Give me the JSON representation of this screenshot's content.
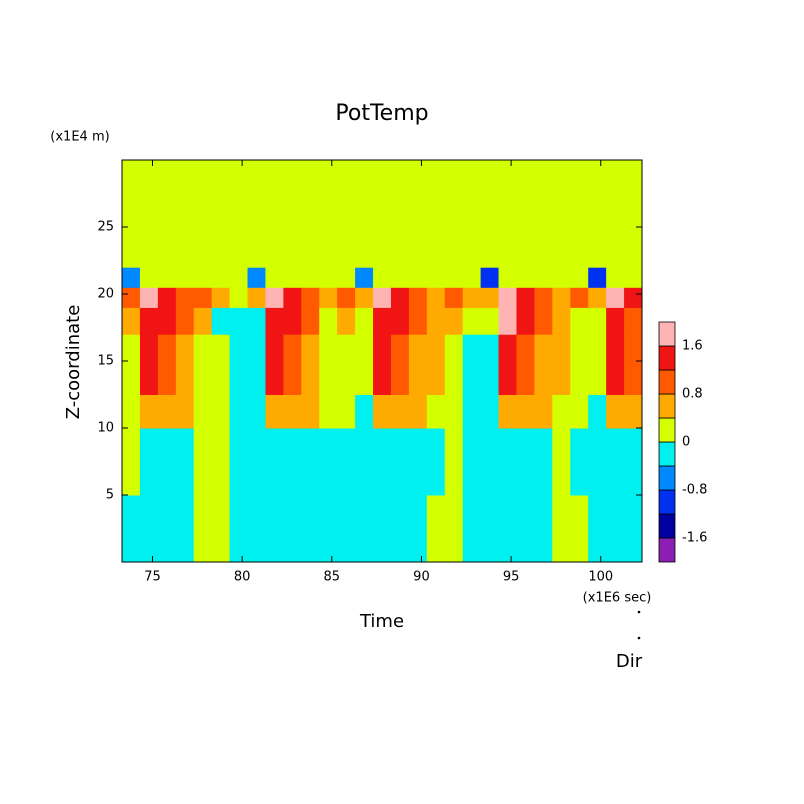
{
  "chart_data": {
    "type": "heatmap",
    "title": "PotTemp",
    "x_label": "Time",
    "x_unit": "(x1E6 sec)",
    "y_label": "Z-coordinate",
    "y_unit": "(x1E4 m)",
    "footer": "Dir",
    "xlim": [
      73.3,
      102.3
    ],
    "ylim": [
      0,
      30
    ],
    "xticks": [
      75,
      80,
      85,
      90,
      95,
      100
    ],
    "yticks": [
      5,
      10,
      15,
      20,
      25
    ],
    "x_edges": [
      73.3,
      74.3,
      75.3,
      76.3,
      77.3,
      78.3,
      79.3,
      80.3,
      81.3,
      82.3,
      83.3,
      84.3,
      85.3,
      86.3,
      87.3,
      88.3,
      89.3,
      90.3,
      91.3,
      92.3,
      93.3,
      94.3,
      95.3,
      96.3,
      97.3,
      98.3,
      99.3,
      100.3,
      101.3,
      102.3
    ],
    "z_edges": [
      0,
      5,
      10,
      12.5,
      17,
      19,
      20.5,
      22,
      30
    ],
    "values": [
      [
        -0.2,
        0.2,
        0.2,
        0.2,
        0.6,
        1.0,
        -0.6,
        0.2
      ],
      [
        -0.2,
        -0.2,
        0.6,
        1.4,
        1.4,
        1.8,
        0.2,
        0.2
      ],
      [
        -0.2,
        -0.2,
        0.6,
        1.0,
        1.4,
        1.4,
        0.2,
        0.2
      ],
      [
        -0.2,
        -0.2,
        0.6,
        0.6,
        1.0,
        1.0,
        0.2,
        0.2
      ],
      [
        0.2,
        0.2,
        0.2,
        0.2,
        0.6,
        1.0,
        0.2,
        0.2
      ],
      [
        0.2,
        0.2,
        0.2,
        0.2,
        -0.2,
        0.6,
        0.2,
        0.2
      ],
      [
        -0.2,
        -0.2,
        -0.2,
        -0.2,
        -0.2,
        0.2,
        0.2,
        0.2
      ],
      [
        -0.2,
        -0.2,
        -0.2,
        -0.2,
        -0.2,
        0.6,
        -0.6,
        0.2
      ],
      [
        -0.2,
        -0.2,
        0.6,
        1.4,
        1.4,
        1.8,
        0.2,
        0.2
      ],
      [
        -0.2,
        -0.2,
        0.6,
        1.0,
        1.4,
        1.4,
        0.2,
        0.2
      ],
      [
        -0.2,
        -0.2,
        0.6,
        0.6,
        1.0,
        1.0,
        0.2,
        0.2
      ],
      [
        -0.2,
        -0.2,
        0.2,
        0.2,
        0.2,
        0.6,
        0.2,
        0.2
      ],
      [
        -0.2,
        -0.2,
        0.2,
        0.2,
        0.6,
        1.0,
        0.2,
        0.2
      ],
      [
        -0.2,
        -0.2,
        -0.2,
        0.2,
        0.2,
        0.6,
        -0.6,
        0.2
      ],
      [
        -0.2,
        -0.2,
        0.6,
        1.4,
        1.4,
        1.8,
        0.2,
        0.2
      ],
      [
        -0.2,
        -0.2,
        0.6,
        1.0,
        1.4,
        1.4,
        0.2,
        0.2
      ],
      [
        -0.2,
        -0.2,
        0.6,
        0.6,
        1.0,
        1.0,
        0.2,
        0.2
      ],
      [
        0.2,
        -0.2,
        0.2,
        0.6,
        0.6,
        0.6,
        0.2,
        0.2
      ],
      [
        0.2,
        0.2,
        0.2,
        0.2,
        0.6,
        1.0,
        0.2,
        0.2
      ],
      [
        -0.2,
        -0.2,
        -0.2,
        -0.2,
        0.2,
        0.6,
        0.2,
        0.2
      ],
      [
        -0.2,
        -0.2,
        -0.2,
        -0.2,
        0.2,
        0.6,
        -1.0,
        0.2
      ],
      [
        -0.2,
        -0.2,
        0.6,
        1.4,
        1.8,
        1.8,
        0.2,
        0.2
      ],
      [
        -0.2,
        -0.2,
        0.6,
        1.0,
        1.4,
        1.4,
        0.2,
        0.2
      ],
      [
        -0.2,
        -0.2,
        0.6,
        0.6,
        1.0,
        1.0,
        0.2,
        0.2
      ],
      [
        0.2,
        0.2,
        0.2,
        0.6,
        0.6,
        0.6,
        0.2,
        0.2
      ],
      [
        0.2,
        -0.2,
        0.2,
        0.2,
        0.2,
        1.0,
        0.2,
        0.2
      ],
      [
        -0.2,
        -0.2,
        -0.2,
        0.2,
        0.2,
        0.6,
        -1.0,
        0.2
      ],
      [
        -0.2,
        -0.2,
        0.6,
        1.4,
        1.4,
        1.8,
        0.2,
        0.2
      ],
      [
        -0.2,
        -0.2,
        0.6,
        1.0,
        1.0,
        1.4,
        0.2,
        0.2
      ]
    ],
    "levels": [
      -2.0,
      -1.6,
      -1.2,
      -0.8,
      -0.4,
      0,
      0.4,
      0.8,
      1.2,
      1.6,
      2.0
    ],
    "colors": [
      "#8c1eb4",
      "#0000a0",
      "#0030f0",
      "#0088ff",
      "#00f0f0",
      "#d4ff00",
      "#ffaa00",
      "#ff5a00",
      "#f01414",
      "#ffb4b4"
    ],
    "colorbar_ticks": [
      1.6,
      0.8,
      0,
      -0.8,
      -1.6
    ]
  }
}
